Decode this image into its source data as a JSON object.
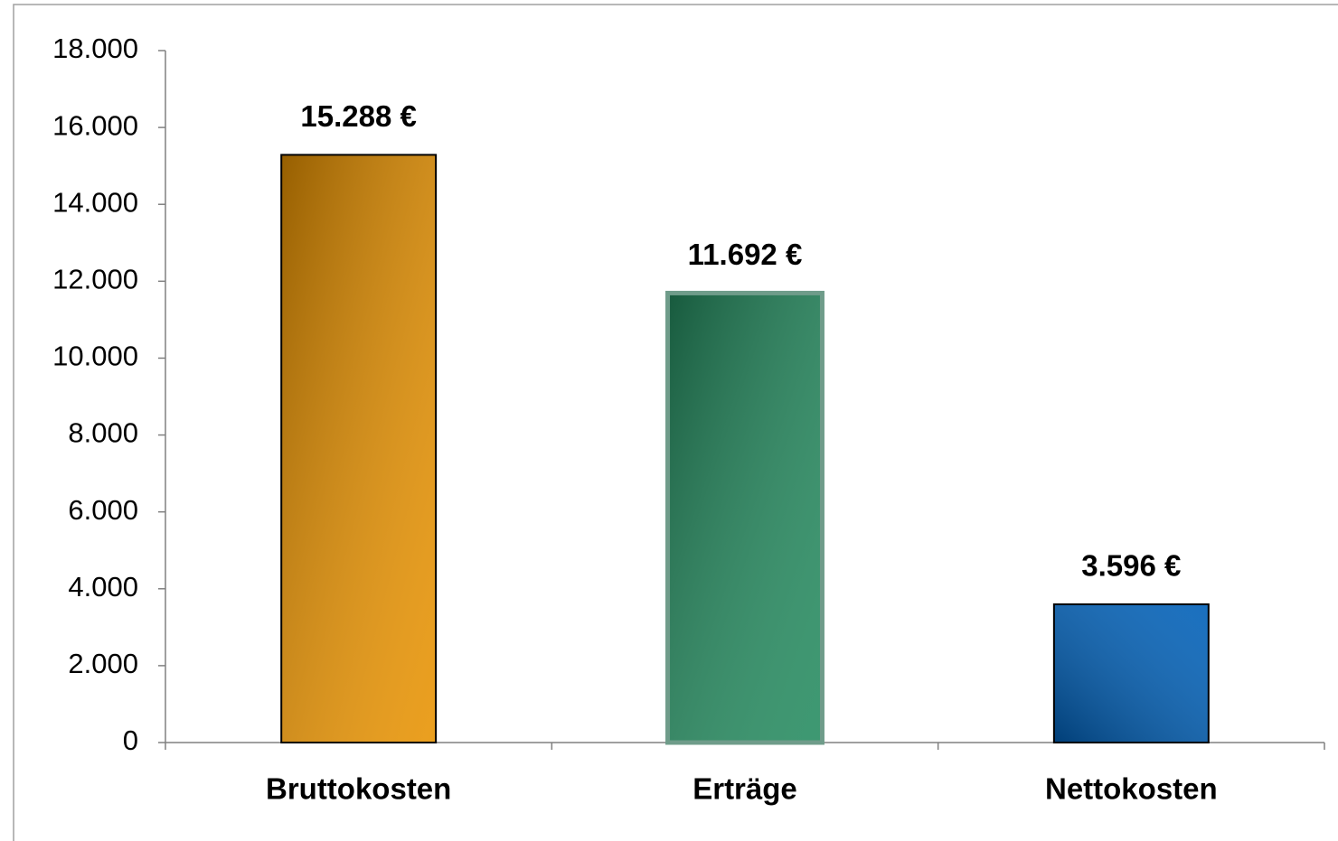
{
  "chart_data": {
    "type": "bar",
    "categories": [
      "Bruttokosten",
      "Erträge",
      "Nettokosten"
    ],
    "values": [
      15288,
      11692,
      3596
    ],
    "value_labels": [
      "15.288 €",
      "11.692 €",
      "3.596 €"
    ],
    "colors": [
      "#e89200",
      "#238a5e",
      "#0060b8"
    ],
    "edge_colors": [
      "#000000",
      "#6f9c8a",
      "#000000"
    ],
    "ylim": [
      0,
      18000
    ],
    "yticks": [
      0,
      {
        "value": 2000,
        "label": "2.000"
      },
      {
        "value": 4000,
        "label": "4.000"
      },
      {
        "value": 6000,
        "label": "6.000"
      },
      {
        "value": 8000,
        "label": "8.000"
      },
      {
        "value": 10000,
        "label": "10.000"
      },
      {
        "value": 12000,
        "label": "12.000"
      },
      {
        "value": 14000,
        "label": "14.000"
      },
      {
        "value": 16000,
        "label": "16.000"
      },
      {
        "value": 18000,
        "label": "18.000"
      }
    ],
    "grid": false
  }
}
